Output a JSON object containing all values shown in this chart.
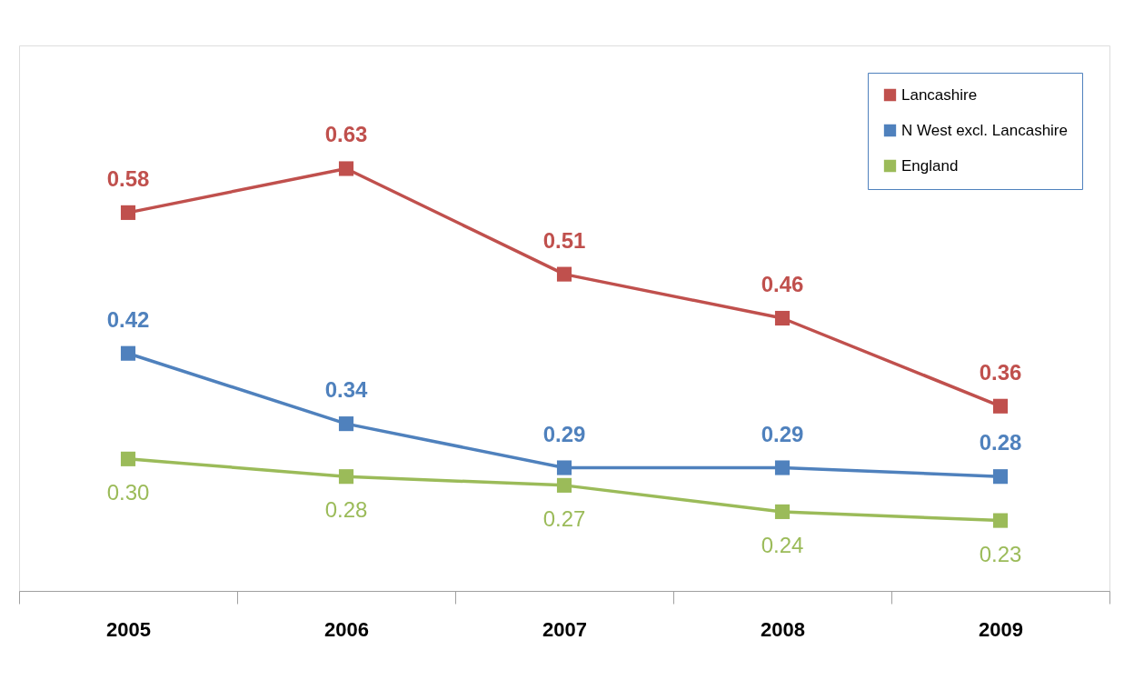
{
  "chart_data": {
    "type": "line",
    "categories": [
      "2005",
      "2006",
      "2007",
      "2008",
      "2009"
    ],
    "ylim": [
      0.15,
      0.77
    ],
    "legend": "top right",
    "marker": "square",
    "grid": false,
    "tick_labels": "x",
    "series": [
      {
        "name": "Lancashire",
        "color": "#c0504d",
        "values": [
          0.58,
          0.63,
          0.51,
          0.46,
          0.36
        ],
        "value_labels": [
          "0.58",
          "0.63",
          "0.51",
          "0.46",
          "0.36"
        ]
      },
      {
        "name": "N West excl. Lancashire",
        "color": "#4f81bd",
        "values": [
          0.42,
          0.34,
          0.29,
          0.29,
          0.28
        ],
        "value_labels": [
          "0.42",
          "0.34",
          "0.29",
          "0.29",
          "0.28"
        ]
      },
      {
        "name": "England",
        "color": "#9bbb59",
        "values": [
          0.3,
          0.28,
          0.27,
          0.24,
          0.23
        ],
        "value_labels": [
          "0.30",
          "0.28",
          "0.27",
          "0.24",
          "0.23"
        ]
      }
    ]
  }
}
